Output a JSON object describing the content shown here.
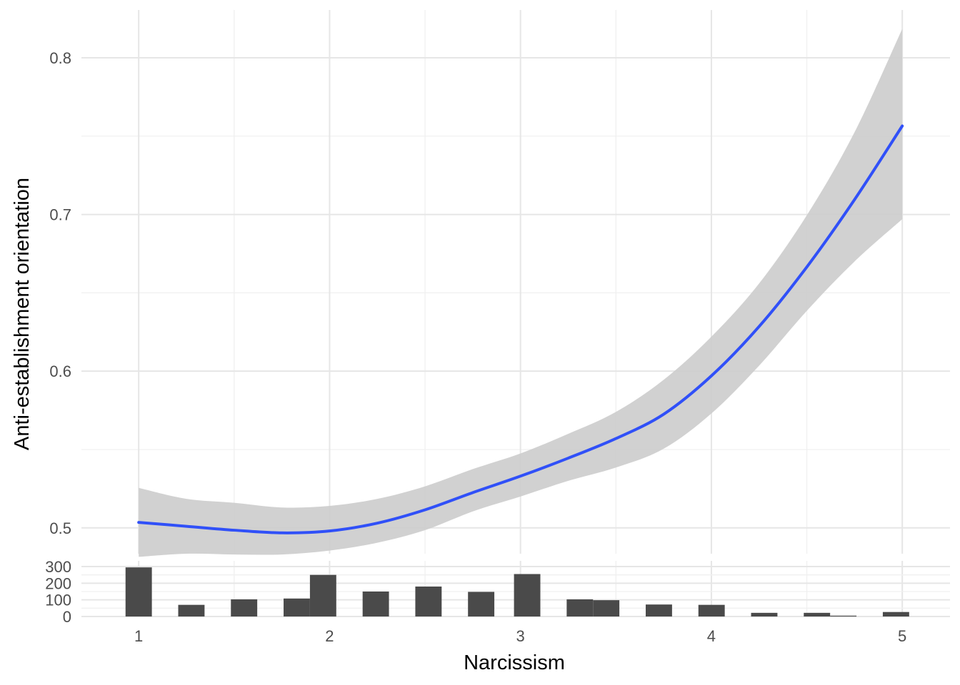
{
  "chart_data": {
    "type": "line",
    "xlabel": "Narcissism",
    "ylabel": "Anti-establishment orientation",
    "x_ticks": [
      "1",
      "2",
      "3",
      "4",
      "5"
    ],
    "y_ticks": [
      "0.5",
      "0.6",
      "0.7",
      "0.8"
    ],
    "xlim": [
      0.7,
      5.25
    ],
    "ylim": [
      0.4835,
      0.8305
    ],
    "grid": true,
    "legend": "none",
    "colors": {
      "line": "#3050f8",
      "band": "#cccccc",
      "bars": "#4a4a4a"
    },
    "series": [
      {
        "type": "smooth-line-with-ci",
        "points": [
          {
            "x": 1.0,
            "y": 0.5035,
            "lo": 0.4815,
            "hi": 0.5255
          },
          {
            "x": 1.25,
            "y": 0.501,
            "lo": 0.4835,
            "hi": 0.5185
          },
          {
            "x": 1.5,
            "y": 0.4985,
            "lo": 0.483,
            "hi": 0.516
          },
          {
            "x": 1.75,
            "y": 0.4968,
            "lo": 0.483,
            "hi": 0.513
          },
          {
            "x": 2.0,
            "y": 0.498,
            "lo": 0.4855,
            "hi": 0.514
          },
          {
            "x": 2.25,
            "y": 0.503,
            "lo": 0.4905,
            "hi": 0.5185
          },
          {
            "x": 2.5,
            "y": 0.5115,
            "lo": 0.4985,
            "hi": 0.5265
          },
          {
            "x": 2.75,
            "y": 0.5225,
            "lo": 0.5105,
            "hi": 0.5375
          },
          {
            "x": 3.0,
            "y": 0.533,
            "lo": 0.52,
            "hi": 0.5475
          },
          {
            "x": 3.25,
            "y": 0.5445,
            "lo": 0.53,
            "hi": 0.56
          },
          {
            "x": 3.5,
            "y": 0.557,
            "lo": 0.5385,
            "hi": 0.574
          },
          {
            "x": 3.75,
            "y": 0.5725,
            "lo": 0.5505,
            "hi": 0.5945
          },
          {
            "x": 4.0,
            "y": 0.597,
            "lo": 0.573,
            "hi": 0.622
          },
          {
            "x": 4.25,
            "y": 0.6285,
            "lo": 0.6035,
            "hi": 0.656
          },
          {
            "x": 4.5,
            "y": 0.6665,
            "lo": 0.6385,
            "hi": 0.6995
          },
          {
            "x": 4.75,
            "y": 0.7095,
            "lo": 0.67,
            "hi": 0.7525
          },
          {
            "x": 5.0,
            "y": 0.7565,
            "lo": 0.697,
            "hi": 0.8185
          }
        ]
      }
    ],
    "histogram": {
      "type": "bar",
      "y_ticks": [
        "0",
        "100",
        "200",
        "300"
      ],
      "ylim": [
        0,
        300
      ],
      "bin_width": 0.138,
      "bins": [
        {
          "x": 1.0,
          "count": 295
        },
        {
          "x": 1.276,
          "count": 70
        },
        {
          "x": 1.552,
          "count": 103
        },
        {
          "x": 1.828,
          "count": 108
        },
        {
          "x": 1.966,
          "count": 250
        },
        {
          "x": 2.242,
          "count": 150
        },
        {
          "x": 2.518,
          "count": 180
        },
        {
          "x": 2.794,
          "count": 148
        },
        {
          "x": 3.035,
          "count": 255
        },
        {
          "x": 3.311,
          "count": 103
        },
        {
          "x": 3.449,
          "count": 98
        },
        {
          "x": 3.725,
          "count": 72
        },
        {
          "x": 4.001,
          "count": 70
        },
        {
          "x": 4.277,
          "count": 22
        },
        {
          "x": 4.553,
          "count": 22
        },
        {
          "x": 4.691,
          "count": 5
        },
        {
          "x": 4.967,
          "count": 27
        }
      ]
    }
  }
}
